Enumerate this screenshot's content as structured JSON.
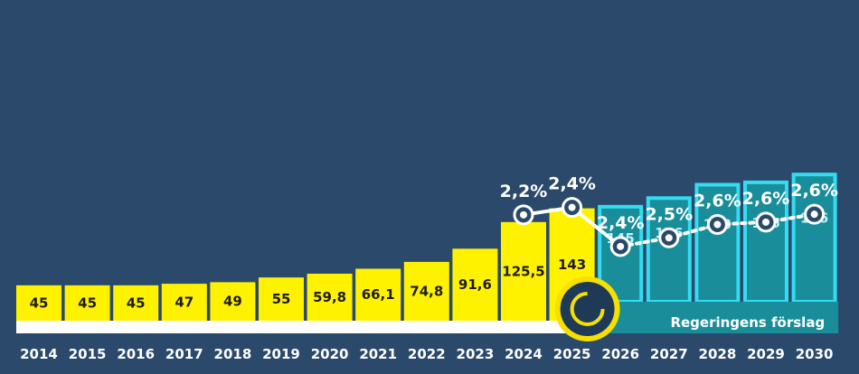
{
  "chart_data": {
    "type": "bar",
    "categories": [
      "2014",
      "2015",
      "2016",
      "2017",
      "2018",
      "2019",
      "2020",
      "2021",
      "2022",
      "2023",
      "2024",
      "2025",
      "2026",
      "2027",
      "2028",
      "2029",
      "2030"
    ],
    "values": [
      45,
      45,
      45,
      47,
      49,
      55,
      59.8,
      66.1,
      74.8,
      91.6,
      125.5,
      143,
      145,
      156,
      173,
      176,
      186
    ],
    "value_labels": [
      "45",
      "45",
      "45",
      "47",
      "49",
      "55",
      "59,8",
      "66,1",
      "74,8",
      "91,6",
      "125,5",
      "143",
      "145",
      "156",
      "173",
      "176",
      "186"
    ],
    "series": [
      {
        "values": [
          null,
          null,
          null,
          null,
          null,
          null,
          null,
          null,
          null,
          null,
          2.2,
          2.4,
          2.4,
          2.5,
          2.6,
          2.6,
          2.6
        ],
        "labels": [
          null,
          null,
          null,
          null,
          null,
          null,
          null,
          null,
          null,
          null,
          "2,2%",
          "2,4%",
          "2,4%",
          "2,5%",
          "2,6%",
          "2,6%",
          "2,6%"
        ]
      }
    ],
    "legend": {
      "label": "Regeringens förslag",
      "placement": "bottom-right"
    },
    "ylim": [
      0,
      200
    ],
    "grid": false,
    "colors": {
      "background": "#2b4a6b",
      "historical_bar": "#fff200",
      "proposal_bar": "#1a8d9a",
      "proposal_outline": "#33dcf0",
      "proposal_label": "#bfefff",
      "line": "#ffffff",
      "legend_circle": "#f6e000",
      "legend_band": "#1a8d9a",
      "baseline_band": "#ffffff"
    },
    "proposal_start_index": 12
  }
}
